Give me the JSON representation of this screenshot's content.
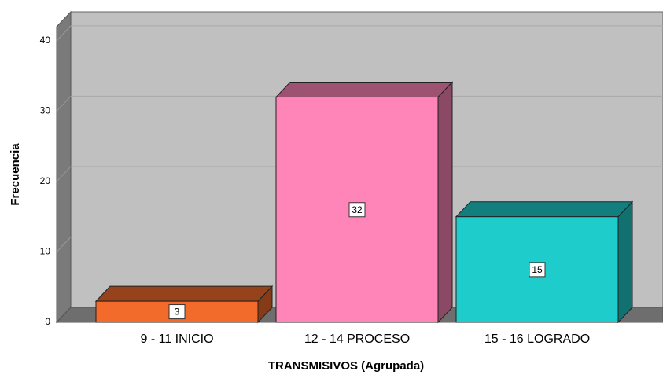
{
  "chart_data": {
    "type": "bar3d",
    "x_label": "TRANSMISIVOS (Agrupada)",
    "y_label": "Frecuencia",
    "categories": [
      "9 - 11 INICIO",
      "12 - 14 PROCESO",
      "15 - 16 LOGRADO"
    ],
    "values": [
      3,
      32,
      15
    ],
    "colors": [
      "#f26b2b",
      "#ff85b8",
      "#1fcccc"
    ],
    "ylim": [
      0,
      42
    ],
    "yticks": [
      0,
      10,
      20,
      30,
      40
    ],
    "grid": true
  }
}
